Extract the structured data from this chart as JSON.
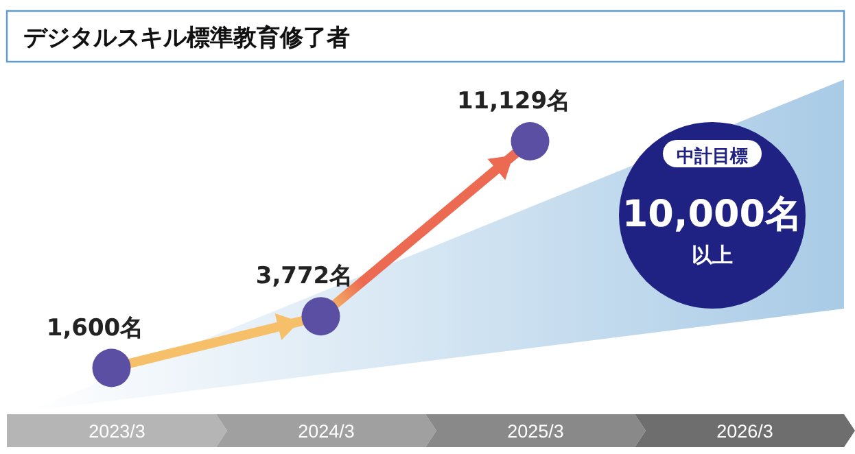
{
  "chart_data": {
    "type": "line",
    "title": "デジタルスキル標準教育修了者",
    "categories": [
      "2023/3",
      "2024/3",
      "2025/3",
      "2026/3"
    ],
    "values": [
      1600,
      3772,
      11129,
      null
    ],
    "value_labels": [
      "1,600名",
      "3,772名",
      "11,129名",
      null
    ],
    "color": "#5b4fa3",
    "marker": "circle",
    "annotations": [
      "中計目標",
      "10,000名",
      "以上"
    ]
  }
}
